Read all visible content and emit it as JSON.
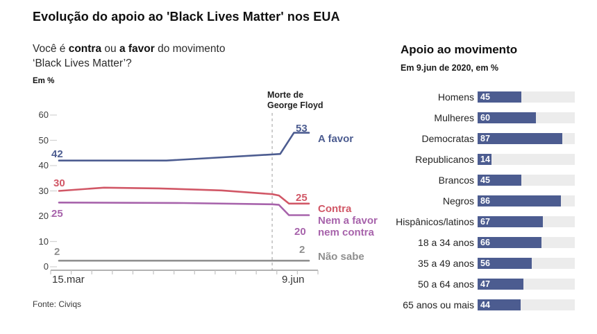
{
  "page": {
    "title": "Evolução do apoio ao 'Black Lives Matter' nos EUA"
  },
  "chart_data": [
    {
      "type": "line",
      "question_prefix": "Você é ",
      "question_bold1": "contra",
      "question_mid": " ou ",
      "question_bold2": "a favor",
      "question_suffix": " do movimento",
      "question_line2": "‘Black Lives Matter’?",
      "unit_label": "Em %",
      "annotation_line1": "Morte de",
      "annotation_line2": "George Floyd",
      "x_start_label": "15.mar",
      "x_end_label": "9.jun",
      "y_ticks": [
        0,
        10,
        20,
        30,
        40,
        50,
        60
      ],
      "ylim": [
        0,
        60
      ],
      "event_x_fraction": 0.853,
      "grid": "off",
      "series": [
        {
          "name": "A favor",
          "color": "#4c5c90",
          "start_value": 42,
          "end_value": 53,
          "points": [
            [
              0,
              42
            ],
            [
              0.43,
              42
            ],
            [
              0.885,
              44.6
            ],
            [
              0.94,
              53
            ],
            [
              1,
              53
            ]
          ]
        },
        {
          "name": "Contra",
          "color": "#d15766",
          "start_value": 30,
          "end_value": 25,
          "points": [
            [
              0,
              30
            ],
            [
              0.18,
              31.3
            ],
            [
              0.4,
              31
            ],
            [
              0.65,
              30.2
            ],
            [
              0.853,
              28.7
            ],
            [
              0.88,
              28.2
            ],
            [
              0.92,
              25
            ],
            [
              1,
              25
            ]
          ]
        },
        {
          "name": "Nem a favor nem contra",
          "color": "#a763ab",
          "start_value": 25,
          "end_value": 20,
          "points": [
            [
              0,
              25.4
            ],
            [
              0.5,
              25.2
            ],
            [
              0.853,
              24.7
            ],
            [
              0.88,
              24.5
            ],
            [
              0.92,
              20.4
            ],
            [
              1,
              20.4
            ]
          ]
        },
        {
          "name": "Não sabe",
          "color": "#8f8f8f",
          "start_value": 2,
          "end_value": 2,
          "points": [
            [
              0,
              2.4
            ],
            [
              1,
              2.4
            ]
          ]
        }
      ],
      "source": "Fonte: Civiqs"
    },
    {
      "type": "bar",
      "title": "Apoio ao movimento",
      "subtitle": "Em 9.jun de 2020, em %",
      "bar_color": "#4c5c90",
      "track_color": "#ececec",
      "xlim": [
        0,
        100
      ],
      "legend_position": "none",
      "categories": [
        "Homens",
        "Mulheres",
        "Democratas",
        "Republicanos",
        "Brancos",
        "Negros",
        "Hispânicos/latinos",
        "18 a 34 anos",
        "35 a 49 anos",
        "50 a 64 anos",
        "65 anos ou mais"
      ],
      "values": [
        45,
        60,
        87,
        14,
        45,
        86,
        67,
        66,
        56,
        47,
        44
      ]
    }
  ]
}
